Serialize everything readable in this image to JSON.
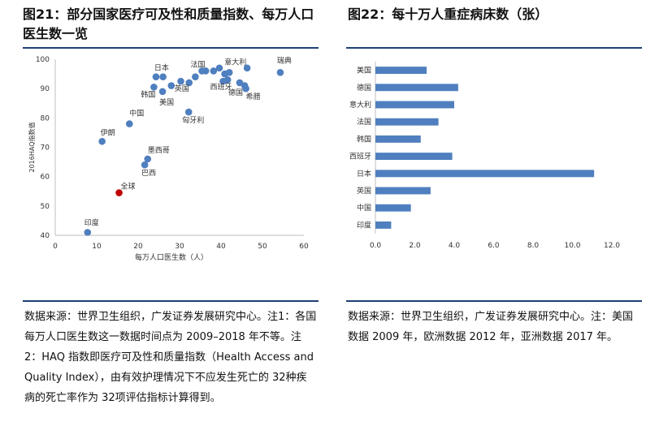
{
  "left_panel": {
    "title": "图21：部分国家医疗可及性和质量指数、每万人口医生数一览",
    "source": "数据来源：世界卫生组织，广发证券发展研究中心。注1：各国每万人口医生数这一数据时间点为 2009–2018 年不等。注 2：HAQ 指数即医疗可及性和质量指数（Health Access and Quality Index），由有效护理情况下不应发生死亡的 32种疾病的死亡率作为 32项评估指标计算得到。"
  },
  "right_panel": {
    "title": "图22：每十万人重症病床数（张）",
    "source": "数据来源：世界卫生组织，广发证券发展研究中心。注：美国数据 2009 年，欧洲数据 2012 年，亚洲数据 2017 年。"
  },
  "colors": {
    "series": "#4f7fbf",
    "highlight": "#c00000",
    "rule": "#1f3f74",
    "axis": "#bfbfbf"
  },
  "chart_data": [
    {
      "type": "scatter",
      "title": "",
      "xlabel": "每万人口医生数（人）",
      "ylabel": "2016HAQ指数值",
      "xlim": [
        0,
        60
      ],
      "ylim": [
        40,
        100
      ],
      "xticks": [
        0,
        10,
        20,
        30,
        40,
        50,
        60
      ],
      "yticks": [
        40,
        50,
        60,
        70,
        80,
        90,
        100
      ],
      "grid": false,
      "points": [
        {
          "x": 7.8,
          "y": 41,
          "label": "印度"
        },
        {
          "x": 11.3,
          "y": 72,
          "label": "伊朗"
        },
        {
          "x": 17.9,
          "y": 78,
          "label": "中国"
        },
        {
          "x": 15.4,
          "y": 54.5,
          "label": "全球",
          "highlight": true
        },
        {
          "x": 22.3,
          "y": 66,
          "label": "墨西哥"
        },
        {
          "x": 21.6,
          "y": 64,
          "label": "巴西"
        },
        {
          "x": 23.8,
          "y": 90.5,
          "label": "韩国"
        },
        {
          "x": 24.3,
          "y": 94,
          "label": "日本"
        },
        {
          "x": 26.0,
          "y": 94
        },
        {
          "x": 25.9,
          "y": 89,
          "label": "美国"
        },
        {
          "x": 28.0,
          "y": 91
        },
        {
          "x": 30.3,
          "y": 92.5
        },
        {
          "x": 32.3,
          "y": 92,
          "label": "英国"
        },
        {
          "x": 32.2,
          "y": 82,
          "label": "匈牙利"
        },
        {
          "x": 33.8,
          "y": 94
        },
        {
          "x": 35.4,
          "y": 96,
          "label": "法国"
        },
        {
          "x": 36.3,
          "y": 96
        },
        {
          "x": 38.2,
          "y": 96
        },
        {
          "x": 39.6,
          "y": 97
        },
        {
          "x": 40.5,
          "y": 92.5,
          "label": "西班牙"
        },
        {
          "x": 40.9,
          "y": 95
        },
        {
          "x": 41.6,
          "y": 93
        },
        {
          "x": 42.0,
          "y": 95.5,
          "label": "意大利"
        },
        {
          "x": 44.5,
          "y": 92,
          "label": "德国"
        },
        {
          "x": 45.7,
          "y": 91
        },
        {
          "x": 46.3,
          "y": 97
        },
        {
          "x": 46.0,
          "y": 90,
          "label": "希腊"
        },
        {
          "x": 54.3,
          "y": 95.5,
          "label": "瑞典"
        }
      ]
    },
    {
      "type": "bar",
      "orientation": "horizontal",
      "title": "",
      "xlim": [
        0,
        12
      ],
      "xticks": [
        "0.0",
        "2.0",
        "4.0",
        "6.0",
        "8.0",
        "10.0",
        "12.0"
      ],
      "categories": [
        "美国",
        "德国",
        "意大利",
        "法国",
        "韩国",
        "西班牙",
        "日本",
        "英国",
        "中国",
        "印度"
      ],
      "values": [
        2.6,
        4.2,
        4.0,
        3.2,
        2.3,
        3.9,
        11.1,
        2.8,
        1.8,
        0.8
      ],
      "grid": false
    }
  ]
}
